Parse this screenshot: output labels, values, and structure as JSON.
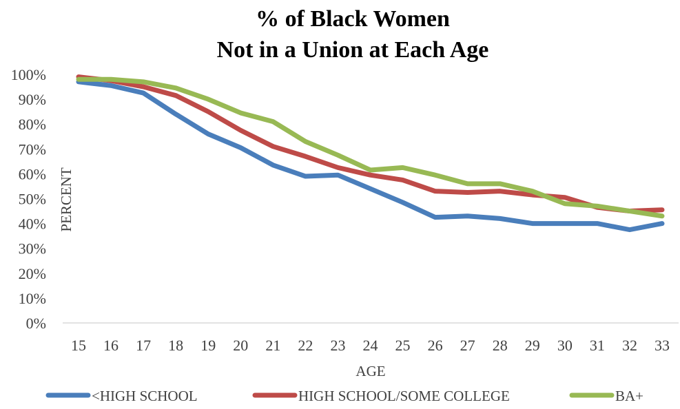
{
  "chart_data": {
    "type": "line",
    "title": [
      "% of Black Women",
      "Not in a Union at Each Age"
    ],
    "xlabel": "AGE",
    "ylabel": "PERCENT",
    "x": [
      15,
      16,
      17,
      18,
      19,
      20,
      21,
      22,
      23,
      24,
      25,
      26,
      27,
      28,
      29,
      30,
      31,
      32,
      33
    ],
    "y_ticks": [
      "0%",
      "10%",
      "20%",
      "30%",
      "40%",
      "50%",
      "60%",
      "70%",
      "80%",
      "90%",
      "100%"
    ],
    "ylim": [
      0,
      100
    ],
    "grid": false,
    "legend_position": "bottom",
    "series": [
      {
        "name": "<HIGH SCHOOL",
        "color": "#4a7ebb",
        "values": [
          97,
          95.5,
          92.5,
          84,
          76,
          70.5,
          63.5,
          59,
          59.5,
          54,
          48.5,
          42.5,
          43,
          42,
          40,
          40,
          40,
          37.5,
          40
        ]
      },
      {
        "name": "HIGH SCHOOL/SOME COLLEGE",
        "color": "#be4b48",
        "values": [
          99,
          97.5,
          95,
          91.5,
          85,
          77.5,
          71,
          67,
          62.5,
          59.5,
          57.5,
          53,
          52.5,
          53,
          51.5,
          50.5,
          46.5,
          45,
          45.5
        ]
      },
      {
        "name": "BA+",
        "color": "#98b954",
        "values": [
          98,
          98,
          97,
          94.5,
          90,
          84.5,
          81,
          73,
          67.5,
          61.5,
          62.5,
          59.5,
          56,
          56,
          53,
          48,
          47,
          45,
          43
        ]
      }
    ]
  }
}
